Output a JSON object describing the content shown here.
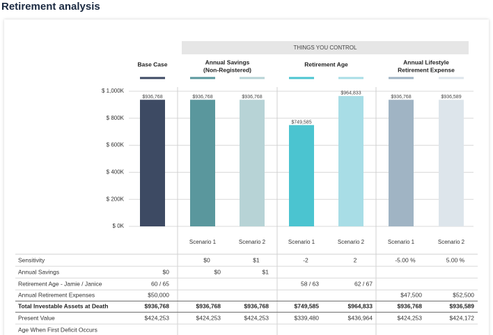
{
  "header": {
    "title": "Retirement analysis"
  },
  "chart_data": {
    "type": "bar",
    "banner": "THINGS YOU CONTROL",
    "groups": [
      [
        "Base Case"
      ],
      [
        "Annual Savings",
        "(Non-Registered)"
      ],
      [
        "Retirement Age"
      ],
      [
        "Annual Lifestyle",
        "Retirement Expense"
      ]
    ],
    "categories": [
      null,
      "Scenario 1",
      "Scenario 2",
      "Scenario 1",
      "Scenario 2",
      "Scenario 1",
      "Scenario 2"
    ],
    "values": [
      936768,
      936768,
      936768,
      749585,
      964833,
      936768,
      936589
    ],
    "value_labels": [
      "$936,768",
      "$936,768",
      "$936,768",
      "$749,585",
      "$964,833",
      "$936,768",
      "$936,589"
    ],
    "colors": [
      "#3d4a63",
      "#5a979d",
      "#b7d3d6",
      "#4bc4d0",
      "#a8dde6",
      "#a0b4c4",
      "#dde5eb"
    ],
    "ylim": [
      0,
      1000000
    ],
    "yticks": [
      {
        "value": 0,
        "label": "$ 0K"
      },
      {
        "value": 200000,
        "label": "$ 200K"
      },
      {
        "value": 400000,
        "label": "$ 400K"
      },
      {
        "value": 600000,
        "label": "$ 600K"
      },
      {
        "value": 800000,
        "label": "$ 800K"
      },
      {
        "value": 1000000,
        "label": "$ 1,000K"
      }
    ],
    "grid": true
  },
  "table": {
    "rows": [
      {
        "label": "Sensitivity",
        "cells": [
          null,
          "$0",
          "$1",
          "-2",
          "2",
          "-5.00 %",
          "5.00 %"
        ]
      },
      {
        "label": "Annual Savings",
        "cells": [
          "$0",
          "$0",
          "$1",
          null,
          null,
          null,
          null
        ]
      },
      {
        "label": "Retirement Age - Jamie / Janice",
        "cells": [
          "60 / 65",
          null,
          null,
          "58 / 63",
          "62 / 67",
          null,
          null
        ]
      },
      {
        "label": "Annual Retirement Expenses",
        "cells": [
          "$50,000",
          null,
          null,
          null,
          null,
          "$47,500",
          "$52,500"
        ]
      },
      {
        "label": "Total Investable Assets at Death",
        "bold": true,
        "cells": [
          "$936,768",
          "$936,768",
          "$936,768",
          "$749,585",
          "$964,833",
          "$936,768",
          "$936,589"
        ]
      },
      {
        "label": "Present Value",
        "cells": [
          "$424,253",
          "$424,253",
          "$424,253",
          "$339,480",
          "$436,964",
          "$424,253",
          "$424,172"
        ]
      },
      {
        "label": "Age When First Deficit Occurs",
        "cells": [
          null,
          null,
          null,
          null,
          null,
          null,
          null
        ]
      }
    ]
  }
}
